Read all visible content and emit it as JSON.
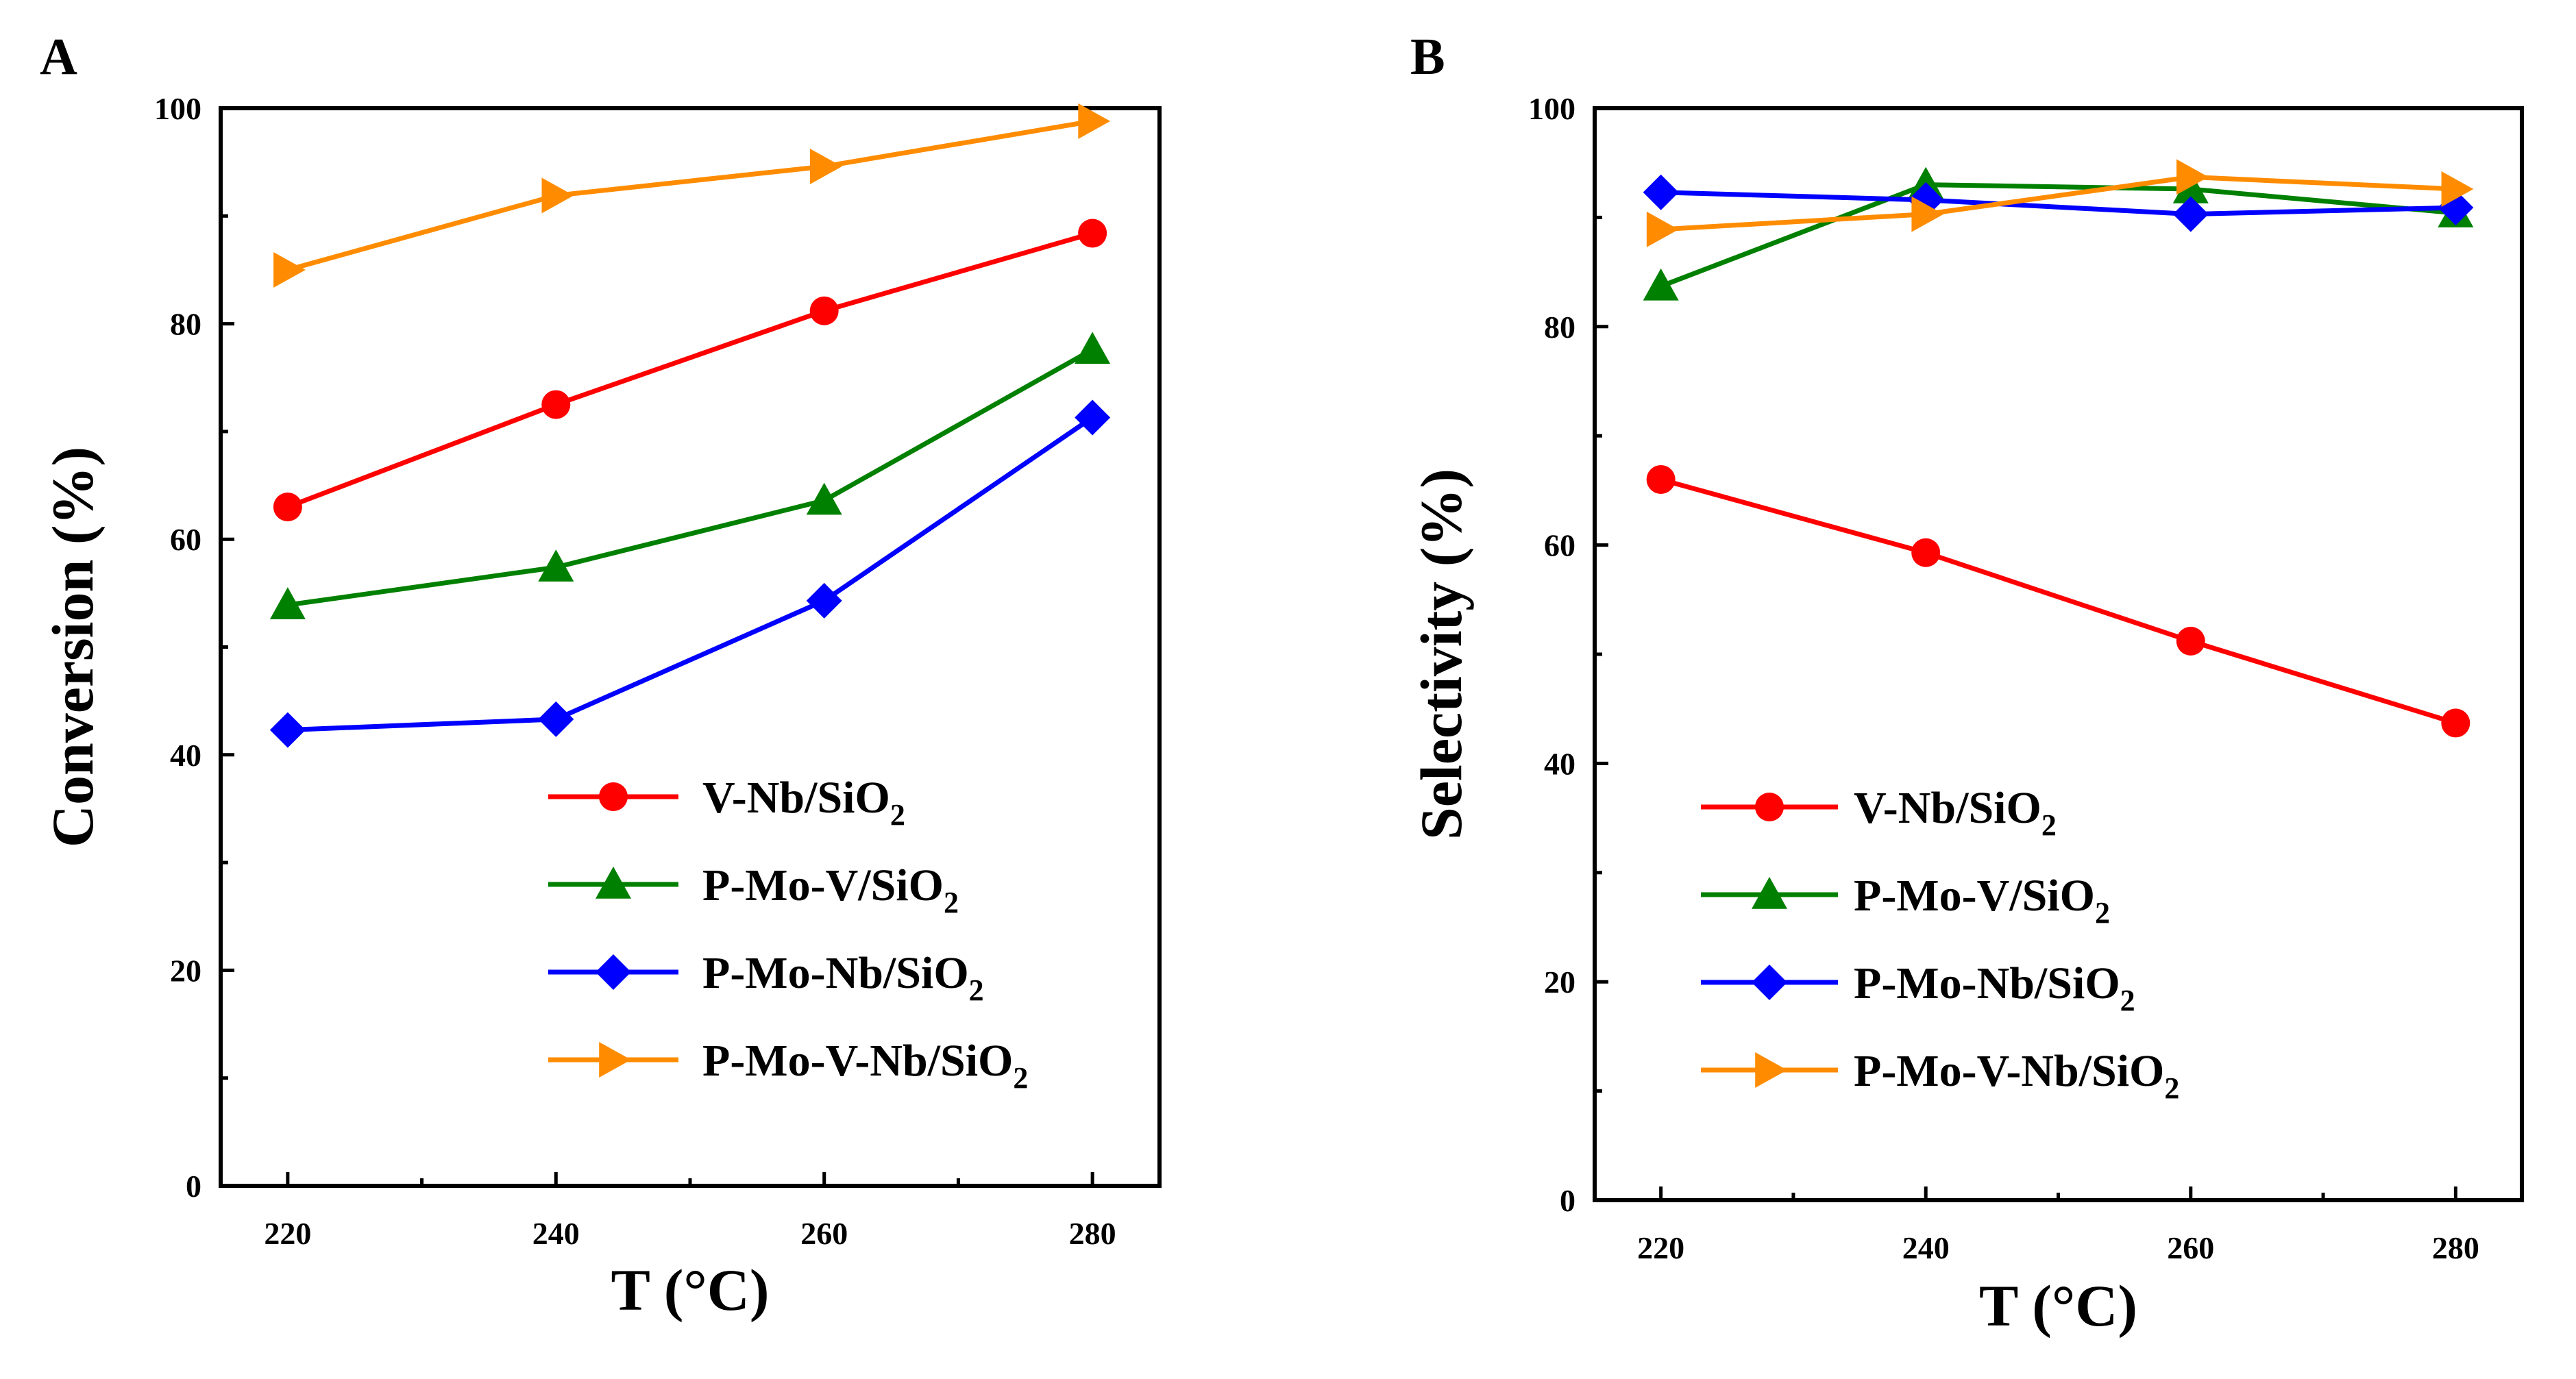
{
  "chart_data": [
    {
      "panel": "A",
      "type": "line",
      "title": "",
      "xlabel": "T (°C)",
      "ylabel": "Conversion (%)",
      "x": [
        220,
        240,
        260,
        280
      ],
      "xlim": [
        215,
        285
      ],
      "ylim": [
        0,
        100
      ],
      "xticks": [
        "220",
        "240",
        "260",
        "280"
      ],
      "yticks": [
        "0",
        "20",
        "40",
        "60",
        "80",
        "100"
      ],
      "legend_position": "lower-right",
      "series": [
        {
          "name": "V-Nb/SiO",
          "sub": "2",
          "color": "#ff0000",
          "marker": "circle",
          "values": [
            63,
            72.5,
            81.2,
            88.4
          ]
        },
        {
          "name": "P-Mo-V/SiO",
          "sub": "2",
          "color": "#008000",
          "marker": "triangle-up",
          "values": [
            53.9,
            57.4,
            63.6,
            77.6
          ]
        },
        {
          "name": "P-Mo-Nb/SiO",
          "sub": "2",
          "color": "#0000ff",
          "marker": "diamond",
          "values": [
            42.3,
            43.3,
            54.3,
            71.3
          ]
        },
        {
          "name": "P-Mo-V-Nb/SiO",
          "sub": "2",
          "color": "#ff8c00",
          "marker": "triangle-right",
          "values": [
            85,
            91.9,
            94.6,
            98.8
          ]
        }
      ]
    },
    {
      "panel": "B",
      "type": "line",
      "title": "",
      "xlabel": "T (°C)",
      "ylabel": "Selectivity (%)",
      "x": [
        220,
        240,
        260,
        280
      ],
      "xlim": [
        215,
        285
      ],
      "ylim": [
        0,
        100
      ],
      "xticks": [
        "220",
        "240",
        "260",
        "280"
      ],
      "yticks": [
        "0",
        "20",
        "40",
        "60",
        "80",
        "100"
      ],
      "legend_position": "lower-center",
      "series": [
        {
          "name": "V-Nb/SiO",
          "sub": "2",
          "color": "#ff0000",
          "marker": "circle",
          "values": [
            66,
            59.3,
            51.2,
            43.7
          ]
        },
        {
          "name": "P-Mo-V/SiO",
          "sub": "2",
          "color": "#008000",
          "marker": "triangle-up",
          "values": [
            83.7,
            93,
            92.6,
            90.4
          ]
        },
        {
          "name": "P-Mo-Nb/SiO",
          "sub": "2",
          "color": "#0000ff",
          "marker": "diamond",
          "values": [
            92.3,
            91.6,
            90.3,
            90.9
          ]
        },
        {
          "name": "P-Mo-V-Nb/SiO",
          "sub": "2",
          "color": "#ff8c00",
          "marker": "triangle-right",
          "values": [
            88.9,
            90.3,
            93.7,
            92.6
          ]
        }
      ]
    }
  ]
}
